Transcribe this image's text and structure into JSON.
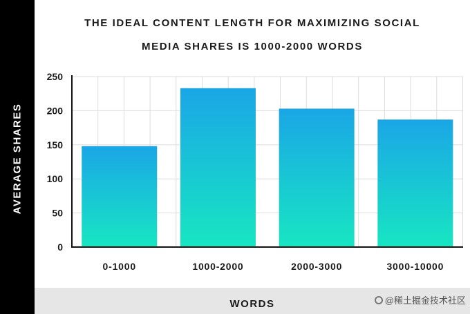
{
  "chart_data": {
    "type": "bar",
    "title_lines": [
      "THE IDEAL CONTENT LENGTH FOR MAXIMIZING SOCIAL",
      "MEDIA SHARES IS 1000-2000 WORDS"
    ],
    "xlabel": "WORDS",
    "ylabel": "AVERAGE SHARES",
    "categories": [
      "0-1000",
      "1000-2000",
      "2000-3000",
      "3000-10000"
    ],
    "values": [
      148,
      233,
      203,
      187
    ],
    "ylim": [
      0,
      250
    ],
    "yticks": [
      0,
      50,
      100,
      150,
      200,
      250
    ],
    "grid": true,
    "colors": {
      "bar_top": "#1aa6e6",
      "bar_bottom": "#17e6c2",
      "grid": "#dddddd",
      "axis": "#111111",
      "left_band": "#000000",
      "bottom_band": "#e6e6e6"
    }
  },
  "watermark": {
    "text": "@稀土掘金技术社区",
    "icon": "chat-bubble-icon"
  }
}
